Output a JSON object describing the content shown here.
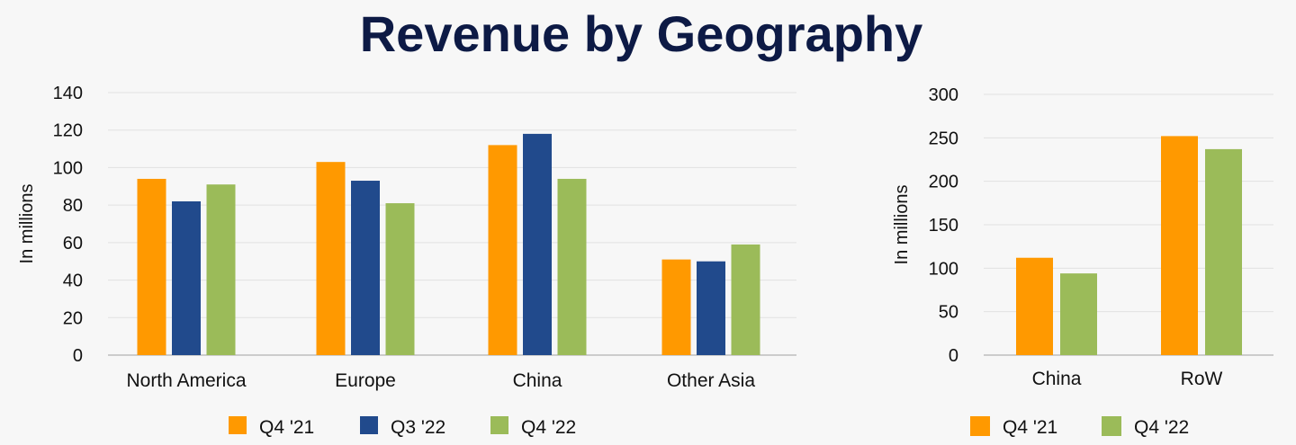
{
  "title": "Revenue by Geography",
  "colors": {
    "Q4 '21": "#ff9900",
    "Q3 '22": "#214a8c",
    "Q4 '22": "#9bbb59"
  },
  "chart_data": [
    {
      "type": "bar",
      "categories": [
        "North America",
        "Europe",
        "China",
        "Other Asia"
      ],
      "series": [
        {
          "name": "Q4 '21",
          "values": [
            94,
            103,
            112,
            51
          ]
        },
        {
          "name": "Q3 '22",
          "values": [
            82,
            93,
            118,
            50
          ]
        },
        {
          "name": "Q4 '22",
          "values": [
            91,
            81,
            94,
            59
          ]
        }
      ],
      "ylabel": "In millions",
      "ylim": [
        0,
        140
      ],
      "yticks": [
        0,
        20,
        40,
        60,
        80,
        100,
        120,
        140
      ],
      "grid": true,
      "legend": "bottom"
    },
    {
      "type": "bar",
      "categories": [
        "China",
        "RoW"
      ],
      "series": [
        {
          "name": "Q4 '21",
          "values": [
            112,
            252
          ]
        },
        {
          "name": "Q4 '22",
          "values": [
            94,
            237
          ]
        }
      ],
      "ylabel": "In millions",
      "ylim": [
        0,
        300
      ],
      "yticks": [
        0,
        50,
        100,
        150,
        200,
        250,
        300
      ],
      "grid": true,
      "legend": "bottom"
    }
  ]
}
